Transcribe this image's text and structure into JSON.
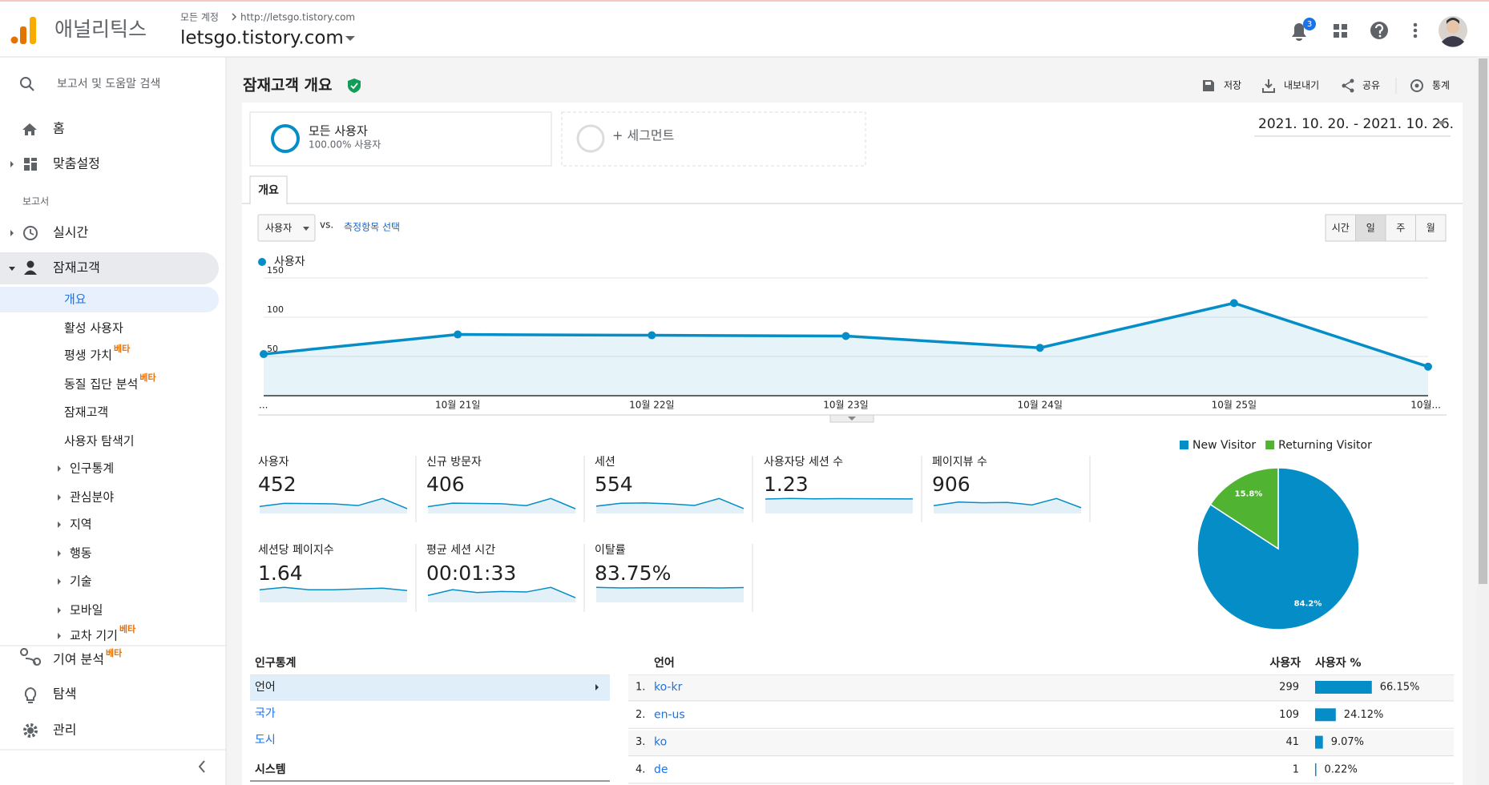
{
  "header": {
    "product": "애널리틱스",
    "breadcrumb_account": "모든 계정",
    "breadcrumb_property": "http://letsgo.tistory.com",
    "view": "letsgo.tistory.com",
    "notification_count": "3"
  },
  "sidebar": {
    "search": "보고서 및 도움말 검색",
    "top_items": [
      "홈",
      "맞춤설정"
    ],
    "reports_heading": "보고서",
    "realtime": "실시간",
    "audience": "잠재고객",
    "audience_items": [
      {
        "label": "개요"
      },
      {
        "label": "활성 사용자"
      },
      {
        "label": "평생 가치",
        "badge": "베타"
      },
      {
        "label": "동질 집단 분석",
        "badge": "베타"
      },
      {
        "label": "잠재고객"
      },
      {
        "label": "사용자 탐색기"
      },
      {
        "label": "인구통계"
      },
      {
        "label": "관심분야"
      },
      {
        "label": "지역"
      },
      {
        "label": "행동"
      },
      {
        "label": "기술"
      },
      {
        "label": "모바일"
      },
      {
        "label": "교차 기기",
        "badge": "베타"
      }
    ],
    "bottom_items": [
      {
        "label": "기여 분석",
        "badge": "베타"
      },
      {
        "label": "탐색"
      },
      {
        "label": "관리"
      }
    ]
  },
  "toolbar": {
    "page_title": "잠재고객 개요",
    "save": "저장",
    "export": "내보내기",
    "share": "공유",
    "insights": "통계"
  },
  "segments": {
    "all_users": "모든 사용자",
    "all_users_share": "100.00% 사용자",
    "add_segment": "+ 세그먼트"
  },
  "date_range": "2021. 10. 20. - 2021. 10. 26.",
  "tab": "개요",
  "metric_picker": {
    "selected": "사용자",
    "vs": "vs.",
    "select": "측정항목 선택"
  },
  "granularity": [
    "시간",
    "일",
    "주",
    "월"
  ],
  "chart_data": [
    {
      "type": "line",
      "categories": [
        "...",
        "10월 21일",
        "10월 22일",
        "10월 23일",
        "10월 24일",
        "10월 25일",
        "10월..."
      ],
      "series": [
        {
          "name": "사용자",
          "color": "#058dc7",
          "values": [
            53,
            78,
            77,
            76,
            61,
            118,
            37
          ]
        }
      ],
      "ylim": [
        0,
        150
      ],
      "yticks": [
        50,
        100,
        150
      ],
      "grid": true
    },
    {
      "type": "pie",
      "categories": [
        "New Visitor",
        "Returning Visitor"
      ],
      "values": [
        84.2,
        15.8
      ],
      "value_labels": [
        "84.2%",
        "15.8%"
      ],
      "colors": [
        "#058dc7",
        "#50b432"
      ],
      "legend": "top"
    }
  ],
  "scorecards": [
    {
      "label": "사용자",
      "value": "452",
      "spark": [
        55,
        80,
        78,
        76,
        62,
        118,
        38
      ]
    },
    {
      "label": "신규 방문자",
      "value": "406",
      "spark": [
        48,
        72,
        70,
        68,
        55,
        105,
        33
      ]
    },
    {
      "label": "세션",
      "value": "554",
      "spark": [
        68,
        95,
        98,
        90,
        75,
        140,
        45
      ]
    },
    {
      "label": "사용자당 세션 수",
      "value": "1.23",
      "spark": [
        1.2,
        1.25,
        1.22,
        1.24,
        1.23,
        1.22,
        1.21
      ]
    },
    {
      "label": "페이지뷰 수",
      "value": "906",
      "spark": [
        110,
        160,
        150,
        155,
        120,
        210,
        80
      ]
    },
    {
      "label": "세션당 페이지수",
      "value": "1.64",
      "spark": [
        1.6,
        1.9,
        1.6,
        1.6,
        1.7,
        1.8,
        1.5
      ]
    },
    {
      "label": "평균 세션 시간",
      "value": "00:01:33",
      "spark": [
        60,
        110,
        85,
        95,
        90,
        130,
        40
      ]
    },
    {
      "label": "이탈률",
      "value": "83.75%",
      "spark": [
        86,
        83,
        84,
        84,
        84,
        83,
        85
      ]
    }
  ],
  "demographics": {
    "heading": "인구통계",
    "items": [
      "언어",
      "국가",
      "도시"
    ],
    "system_heading": "시스템"
  },
  "language_table": {
    "columns": [
      "언어",
      "사용자",
      "사용자 %"
    ],
    "rows": [
      {
        "rank": "1.",
        "language": "ko-kr",
        "users": 299,
        "share": 66.15,
        "share_label": "66.15%"
      },
      {
        "rank": "2.",
        "language": "en-us",
        "users": 109,
        "share": 24.12,
        "share_label": "24.12%"
      },
      {
        "rank": "3.",
        "language": "ko",
        "users": 41,
        "share": 9.07,
        "share_label": "9.07%"
      },
      {
        "rank": "4.",
        "language": "de",
        "users": 1,
        "share": 0.22,
        "share_label": "0.22%"
      }
    ]
  }
}
